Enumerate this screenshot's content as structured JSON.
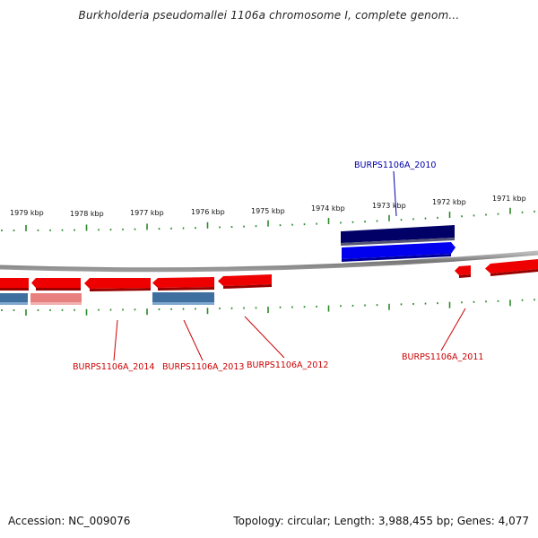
{
  "title": "Burkholderia pseudomallei 1106a chromosome I, complete genom...",
  "footer": {
    "accession": "Accession: NC_009076",
    "summary": "Topology: circular; Length: 3,988,455 bp; Genes: 4,077"
  },
  "ruler_labels": [
    "1979 kbp",
    "1978 kbp",
    "1977 kbp",
    "1976 kbp",
    "1975 kbp",
    "1974 kbp",
    "1973 kbp",
    "1972 kbp",
    "1971 kbp"
  ],
  "gene_labels": {
    "g2010": "BURPS1106A_2010",
    "g2011": "BURPS1106A_2011",
    "g2012": "BURPS1106A_2012",
    "g2013": "BURPS1106A_2013",
    "g2014": "BURPS1106A_2014"
  },
  "colors": {
    "forward_gene": "#0000ee",
    "forward_cds": "#000066",
    "reverse_gene": "#ee0000",
    "reverse_cds": "#3f6f9f",
    "reverse_cds_pale": "#e88080",
    "backbone": "#888888",
    "tick": "#2a8a2a",
    "label_forward": "#0000aa",
    "label_reverse": "#cc0000"
  }
}
